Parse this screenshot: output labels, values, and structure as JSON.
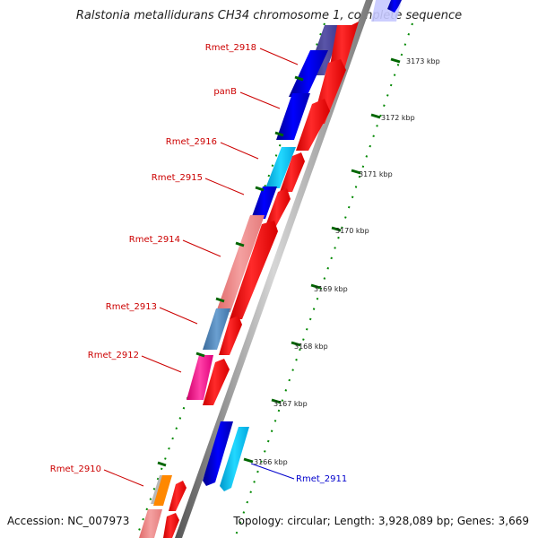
{
  "title": "Ralstonia metallidurans CH34 chromosome 1, complete sequence",
  "footer": {
    "accession": "Accession: NC_007973",
    "topology": "Topology: circular; Length: 3,928,089 bp; Genes: 3,669"
  },
  "ticks": [
    "3173 kbp",
    "3172 kbp",
    "3171 kbp",
    "3170 kbp",
    "3169 kbp",
    "3168 kbp",
    "3167 kbp",
    "3166 kbp"
  ],
  "genes": [
    {
      "name": "Rmet_2918",
      "color": "#cc0000"
    },
    {
      "name": "panB",
      "color": "#cc0000"
    },
    {
      "name": "Rmet_2916",
      "color": "#cc0000"
    },
    {
      "name": "Rmet_2915",
      "color": "#cc0000"
    },
    {
      "name": "Rmet_2914",
      "color": "#cc0000"
    },
    {
      "name": "Rmet_2913",
      "color": "#cc0000"
    },
    {
      "name": "Rmet_2912",
      "color": "#cc0000"
    },
    {
      "name": "Rmet_2910",
      "color": "#cc0000"
    },
    {
      "name": "Rmet_2911",
      "color": "#0000cc"
    }
  ],
  "colors": {
    "backbone": "#a9a9a9",
    "cds": "#ff0000",
    "blue": "#0000ee",
    "cyan": "#00ccff",
    "pink": "#f08080",
    "steelblue": "#4a7fb5",
    "magenta": "#ff1493",
    "tick_green": "#008800"
  }
}
